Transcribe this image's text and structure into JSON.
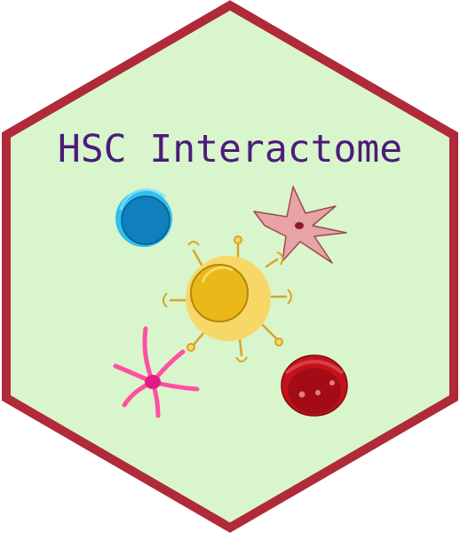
{
  "logo": {
    "title": "HSC Interactome",
    "colors": {
      "border": "#b02a3a",
      "background": "#d9f5cc",
      "title": "#4b1c7a"
    }
  },
  "cells": [
    {
      "name": "blue-lymphocyte-icon",
      "color": "#1a86c8"
    },
    {
      "name": "pink-stromal-cell-icon",
      "color": "#e8a3a6"
    },
    {
      "name": "yellow-hsc-cell-icon",
      "color": "#f2c12e"
    },
    {
      "name": "magenta-dendritic-cell-icon",
      "color": "#ff4fa3"
    },
    {
      "name": "red-blood-cell-icon",
      "color": "#c4121a"
    }
  ]
}
